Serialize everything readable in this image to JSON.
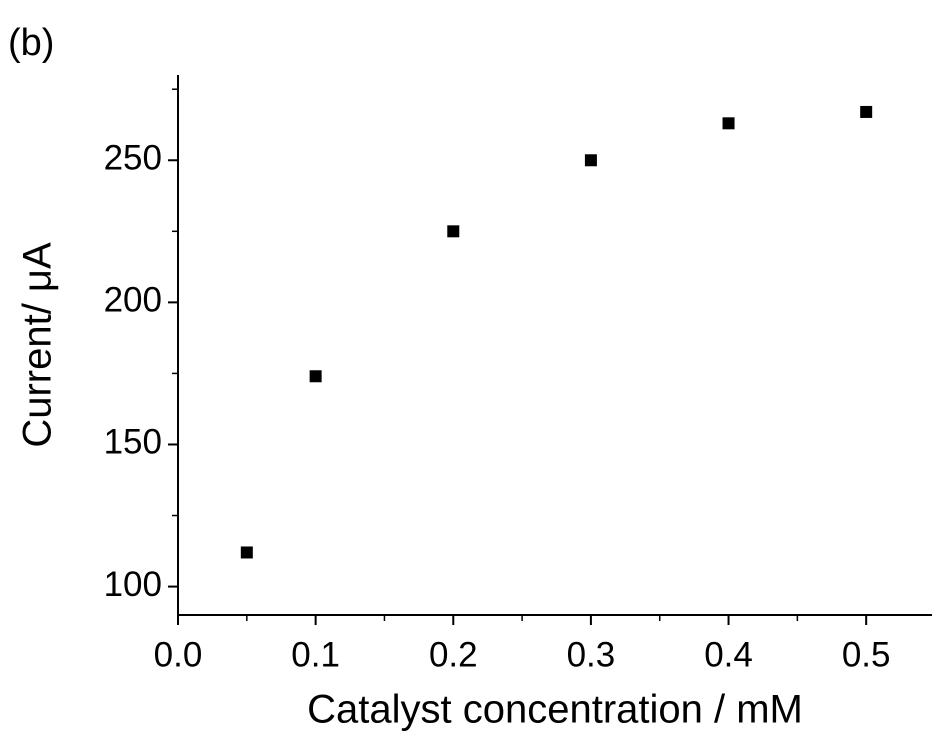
{
  "chart_data": {
    "type": "scatter",
    "panel_label": "(b)",
    "x_label": "Catalyst concentration / mM",
    "y_label": "Current/ μA",
    "series": [
      {
        "name": null,
        "color": "#000000",
        "x": [
          0.05,
          0.1,
          0.2,
          0.3,
          0.4,
          0.5
        ],
        "values": [
          112,
          174,
          225,
          250,
          263,
          267
        ]
      }
    ],
    "xlim": [
      0,
      0.55
    ],
    "xticks": [
      {
        "value": 0,
        "label": "0.0"
      },
      0.1,
      0.2,
      0.3,
      0.4,
      0.5
    ],
    "ylim": [
      90,
      280
    ],
    "yticks": [
      100,
      150,
      200,
      250
    ],
    "grid": false
  }
}
